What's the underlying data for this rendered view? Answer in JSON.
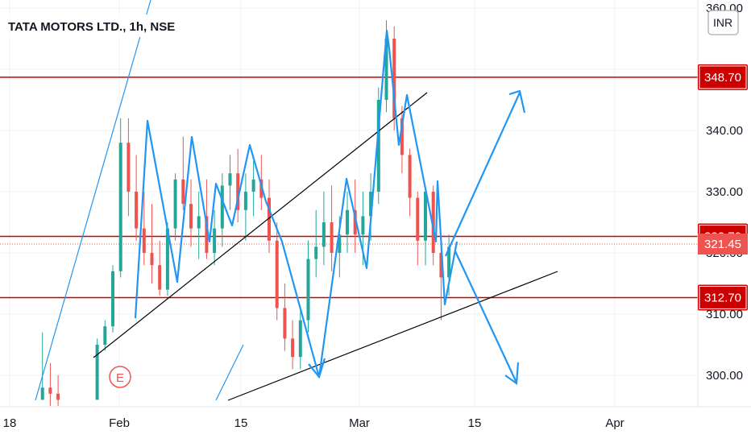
{
  "header": {
    "title": "TATA MOTORS LTD., 1h, NSE",
    "currency_button": "INR"
  },
  "colors": {
    "up": "#26a69a",
    "down": "#ef5350",
    "level_line": "#cc0000",
    "trend_line": "#000000",
    "zigzag": "#2196f3",
    "guide": "#2196f3",
    "current_price_tag": "#ef5350"
  },
  "earnings_marker": {
    "label": "E"
  },
  "chart_data": {
    "type": "candlestick",
    "title": "TATA MOTORS LTD., 1h, NSE",
    "xlabel": "",
    "ylabel": "",
    "ylim": [
      296,
      360
    ],
    "x_ticks": [
      "18",
      "Feb",
      "15",
      "Mar",
      "15",
      "Apr"
    ],
    "y_ticks": [
      "300.00",
      "310.00",
      "320.00",
      "330.00",
      "340.00",
      "350.00",
      "360.00"
    ],
    "price_labels": [
      {
        "value": 348.7,
        "label": "348.70",
        "kind": "level"
      },
      {
        "value": 322.7,
        "label": "322.70",
        "kind": "level"
      },
      {
        "value": 321.45,
        "label": "321.45",
        "kind": "current"
      },
      {
        "value": 312.7,
        "label": "312.70",
        "kind": "level"
      }
    ],
    "horizontal_levels": [
      348.7,
      322.7,
      312.7
    ],
    "current_price": 321.45,
    "candles": [
      [
        1,
        296,
        307,
        296,
        298
      ],
      [
        2,
        298,
        302,
        295,
        297
      ],
      [
        3,
        297,
        300,
        295,
        296
      ],
      [
        8,
        296,
        306,
        296,
        305
      ],
      [
        9,
        305,
        309,
        304,
        308
      ],
      [
        10,
        308,
        318,
        307,
        317
      ],
      [
        11,
        317,
        342,
        316,
        338
      ],
      [
        12,
        338,
        342,
        326,
        330
      ],
      [
        13,
        330,
        336,
        322,
        324
      ],
      [
        14,
        324,
        330,
        318,
        320
      ],
      [
        15,
        320,
        328,
        315,
        318
      ],
      [
        16,
        318,
        322,
        313,
        314
      ],
      [
        17,
        314,
        325,
        313,
        324
      ],
      [
        18,
        324,
        333,
        322,
        332
      ],
      [
        19,
        332,
        339,
        327,
        328
      ],
      [
        20,
        328,
        332,
        321,
        324
      ],
      [
        21,
        324,
        330,
        319,
        326
      ],
      [
        22,
        326,
        332,
        319,
        320
      ],
      [
        23,
        320,
        327,
        318,
        324
      ],
      [
        24,
        324,
        333,
        321,
        331
      ],
      [
        25,
        331,
        336,
        327,
        333
      ],
      [
        26,
        333,
        337,
        325,
        327
      ],
      [
        27,
        327,
        333,
        322,
        330
      ],
      [
        28,
        330,
        335,
        326,
        332
      ],
      [
        29,
        332,
        336,
        327,
        329
      ],
      [
        30,
        329,
        332,
        320,
        322
      ],
      [
        31,
        322,
        325,
        309,
        311
      ],
      [
        32,
        311,
        315,
        304,
        306
      ],
      [
        33,
        306,
        309,
        301,
        303
      ],
      [
        34,
        303,
        311,
        301,
        309
      ],
      [
        35,
        309,
        322,
        307,
        319
      ],
      [
        36,
        319,
        327,
        316,
        321
      ],
      [
        37,
        321,
        330,
        318,
        325
      ],
      [
        38,
        325,
        331,
        317,
        320
      ],
      [
        39,
        320,
        326,
        316,
        323
      ],
      [
        40,
        323,
        330,
        320,
        327
      ],
      [
        41,
        327,
        332,
        320,
        323
      ],
      [
        42,
        323,
        330,
        318,
        326
      ],
      [
        43,
        326,
        333,
        322,
        330
      ],
      [
        44,
        330,
        347,
        328,
        345
      ],
      [
        45,
        345,
        358,
        343,
        355
      ],
      [
        46,
        355,
        357,
        340,
        342
      ],
      [
        47,
        342,
        344,
        333,
        336
      ],
      [
        48,
        336,
        337,
        326,
        329
      ],
      [
        49,
        329,
        330,
        318,
        322
      ],
      [
        50,
        322,
        331,
        318,
        330
      ],
      [
        51,
        330,
        331,
        318,
        320
      ],
      [
        52,
        320,
        322,
        309,
        316
      ],
      [
        53,
        316,
        323,
        313,
        321
      ]
    ],
    "candle_fields": [
      "session",
      "open",
      "high",
      "low",
      "close"
    ]
  }
}
